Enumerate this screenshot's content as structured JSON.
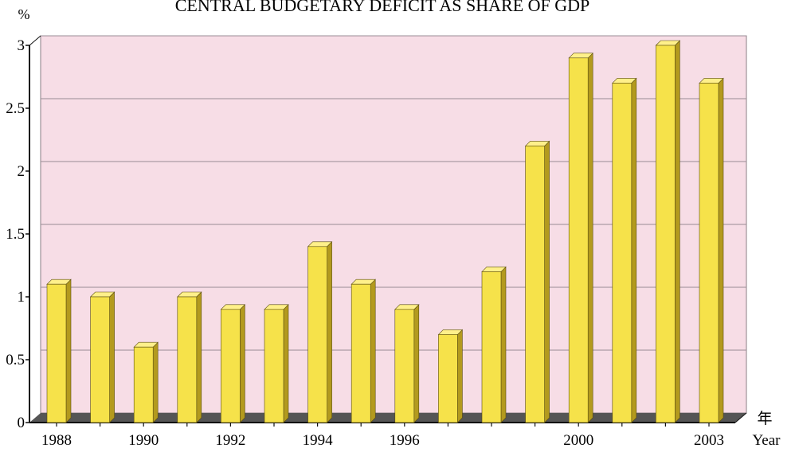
{
  "chart_data": {
    "type": "bar",
    "title": "CENTRAL BUDGETARY DEFICIT AS SHARE OF GDP",
    "ylabel": "%",
    "xlabel": "年",
    "xlabel_en": "Year",
    "ylim": [
      0,
      3
    ],
    "yticks": [
      "0",
      "0.5",
      "1",
      "1.5",
      "2",
      "2.5",
      "3"
    ],
    "ytick_values": [
      0,
      0.5,
      1,
      1.5,
      2,
      2.5,
      3
    ],
    "categories": [
      "1988",
      "1989",
      "1990",
      "1991",
      "1992",
      "1993",
      "1994",
      "1995",
      "1996",
      "1997",
      "1998",
      "1999",
      "2000",
      "2001",
      "2002",
      "2003"
    ],
    "xtick_labels": [
      "1988",
      "",
      "1990",
      "",
      "1992",
      "",
      "1994",
      "",
      "1996",
      "",
      "",
      "",
      "2000",
      "",
      "",
      "2003"
    ],
    "values": [
      1.1,
      1.0,
      0.6,
      1.0,
      0.9,
      0.9,
      1.4,
      1.1,
      0.9,
      0.7,
      1.2,
      2.2,
      2.9,
      2.7,
      3.0,
      2.7
    ],
    "grid": true,
    "colors": {
      "plot_background": "#f7dde6",
      "bar_front": "#f6e24a",
      "bar_side": "#b39a1e",
      "bar_top": "#fff08a",
      "grid": "#9a8c94",
      "floor": "#555555"
    }
  }
}
